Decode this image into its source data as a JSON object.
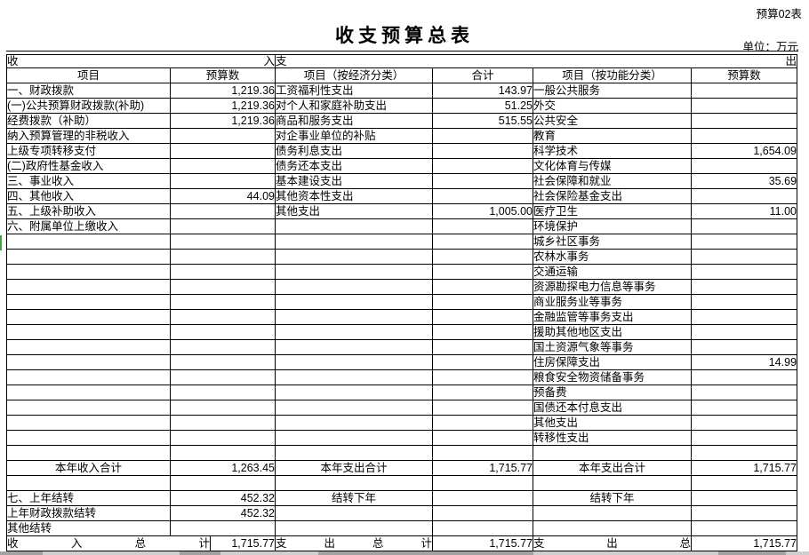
{
  "page": {
    "corner_label": "预算02表",
    "title": "收支预算总表",
    "unit_label": "单位：万元"
  },
  "colors": {
    "selection_green": "#3aa83a",
    "window_strip_gray": "#a2a2a2"
  },
  "table": {
    "header": {
      "income_group": "收入",
      "expense_group": "支出",
      "col_item_income": "项目",
      "col_budget_income": "预算数",
      "col_item_econ": "项目（按经济分类）",
      "col_total_econ": "合计",
      "col_item_func": "项目（按功能分类）",
      "col_budget_func": "预算数"
    },
    "body_rows": [
      {
        "income": {
          "label": "一、财政拨款",
          "indent": 0,
          "value": "1,219.36"
        },
        "economic": {
          "label": "工资福利性支出",
          "value": "143.97"
        },
        "functional": {
          "label": "一般公共服务",
          "value": ""
        }
      },
      {
        "income": {
          "label": "(一)公共预算财政拨款(补助)",
          "indent": 1,
          "value": "1,219.36"
        },
        "economic": {
          "label": "对个人和家庭补助支出",
          "value": "51.25"
        },
        "functional": {
          "label": "外交",
          "value": ""
        }
      },
      {
        "income": {
          "label": "经费拨款（补助）",
          "indent": 2,
          "value": "1,219.36"
        },
        "economic": {
          "label": "商品和服务支出",
          "value": "515.55"
        },
        "functional": {
          "label": "公共安全",
          "value": ""
        }
      },
      {
        "income": {
          "label": "纳入预算管理的非税收入",
          "indent": 2,
          "value": ""
        },
        "economic": {
          "label": "对企事业单位的补贴",
          "value": ""
        },
        "functional": {
          "label": "教育",
          "value": ""
        }
      },
      {
        "income": {
          "label": "上级专项转移支付",
          "indent": 2,
          "value": ""
        },
        "economic": {
          "label": "债务利息支出",
          "value": ""
        },
        "functional": {
          "label": "科学技术",
          "value": "1,654.09"
        }
      },
      {
        "income": {
          "label": "(二)政府性基金收入",
          "indent": 1,
          "value": ""
        },
        "economic": {
          "label": "债务还本支出",
          "value": ""
        },
        "functional": {
          "label": "文化体育与传媒",
          "value": ""
        }
      },
      {
        "income": {
          "label": "三、事业收入",
          "indent": 0,
          "value": ""
        },
        "economic": {
          "label": "基本建设支出",
          "value": ""
        },
        "functional": {
          "label": "社会保障和就业",
          "value": "35.69"
        }
      },
      {
        "income": {
          "label": "四、其他收入",
          "indent": 0,
          "value": "44.09"
        },
        "economic": {
          "label": "其他资本性支出",
          "value": ""
        },
        "functional": {
          "label": "社会保险基金支出",
          "value": ""
        }
      },
      {
        "income": {
          "label": "五、上级补助收入",
          "indent": 0,
          "value": ""
        },
        "economic": {
          "label": "其他支出",
          "value": "1,005.00"
        },
        "functional": {
          "label": "医疗卫生",
          "value": "11.00"
        }
      },
      {
        "income": {
          "label": "六、附属单位上缴收入",
          "indent": 0,
          "value": ""
        },
        "economic": {
          "label": "",
          "value": ""
        },
        "functional": {
          "label": "环境保护",
          "value": ""
        }
      },
      {
        "income": {
          "label": "",
          "indent": 0,
          "value": ""
        },
        "economic": {
          "label": "",
          "value": ""
        },
        "functional": {
          "label": "城乡社区事务",
          "value": ""
        }
      },
      {
        "income": {
          "label": "",
          "indent": 0,
          "value": ""
        },
        "economic": {
          "label": "",
          "value": ""
        },
        "functional": {
          "label": "农林水事务",
          "value": ""
        }
      },
      {
        "income": {
          "label": "",
          "indent": 0,
          "value": ""
        },
        "economic": {
          "label": "",
          "value": ""
        },
        "functional": {
          "label": "交通运输",
          "value": ""
        }
      },
      {
        "income": {
          "label": "",
          "indent": 0,
          "value": ""
        },
        "economic": {
          "label": "",
          "value": ""
        },
        "functional": {
          "label": "资源勘探电力信息等事务",
          "value": ""
        }
      },
      {
        "income": {
          "label": "",
          "indent": 0,
          "value": ""
        },
        "economic": {
          "label": "",
          "value": ""
        },
        "functional": {
          "label": "商业服务业等事务",
          "value": ""
        }
      },
      {
        "income": {
          "label": "",
          "indent": 0,
          "value": ""
        },
        "economic": {
          "label": "",
          "value": ""
        },
        "functional": {
          "label": "金融监管等事务支出",
          "value": ""
        }
      },
      {
        "income": {
          "label": "",
          "indent": 0,
          "value": ""
        },
        "economic": {
          "label": "",
          "value": ""
        },
        "functional": {
          "label": "援助其他地区支出",
          "value": ""
        }
      },
      {
        "income": {
          "label": "",
          "indent": 0,
          "value": ""
        },
        "economic": {
          "label": "",
          "value": ""
        },
        "functional": {
          "label": "国土资源气象等事务",
          "value": ""
        }
      },
      {
        "income": {
          "label": "",
          "indent": 0,
          "value": ""
        },
        "economic": {
          "label": "",
          "value": ""
        },
        "functional": {
          "label": "住房保障支出",
          "value": "14.99"
        }
      },
      {
        "income": {
          "label": "",
          "indent": 0,
          "value": ""
        },
        "economic": {
          "label": "",
          "value": ""
        },
        "functional": {
          "label": "粮食安全物资储备事务",
          "value": ""
        }
      },
      {
        "income": {
          "label": "",
          "indent": 0,
          "value": ""
        },
        "economic": {
          "label": "",
          "value": ""
        },
        "functional": {
          "label": "预备费",
          "value": ""
        }
      },
      {
        "income": {
          "label": "",
          "indent": 0,
          "value": ""
        },
        "economic": {
          "label": "",
          "value": ""
        },
        "functional": {
          "label": "国债还本付息支出",
          "value": ""
        }
      },
      {
        "income": {
          "label": "",
          "indent": 0,
          "value": ""
        },
        "economic": {
          "label": "",
          "value": ""
        },
        "functional": {
          "label": "其他支出",
          "value": ""
        }
      },
      {
        "income": {
          "label": "",
          "indent": 0,
          "value": ""
        },
        "economic": {
          "label": "",
          "value": ""
        },
        "functional": {
          "label": "转移性支出",
          "value": ""
        }
      }
    ],
    "summary_rows": [
      {
        "income_label": "",
        "income_style": "left0",
        "income_value": "",
        "econ_label": "",
        "econ_style": "left0",
        "econ_value": "",
        "func_label": "",
        "func_style": "left0",
        "func_value": ""
      },
      {
        "income_label": "本年收入合计",
        "income_style": "center",
        "income_value": "1,263.45",
        "econ_label": "本年支出合计",
        "econ_style": "center",
        "econ_value": "1,715.77",
        "func_label": "本年支出合计",
        "func_style": "center",
        "func_value": "1,715.77"
      },
      {
        "income_label": "",
        "income_style": "left0",
        "income_value": "",
        "econ_label": "",
        "econ_style": "left0",
        "econ_value": "",
        "func_label": "",
        "func_style": "left0",
        "func_value": ""
      },
      {
        "income_label": "七、上年结转",
        "income_style": "left0",
        "income_value": "452.32",
        "econ_label": "结转下年",
        "econ_style": "center",
        "econ_value": "",
        "func_label": "结转下年",
        "func_style": "center",
        "func_value": ""
      },
      {
        "income_label": "上年财政拨款结转",
        "income_style": "left2",
        "income_value": "452.32",
        "econ_label": "",
        "econ_style": "left0",
        "econ_value": "",
        "func_label": "",
        "func_style": "left0",
        "func_value": ""
      },
      {
        "income_label": "其他结转",
        "income_style": "left2",
        "income_value": "",
        "econ_label": "",
        "econ_style": "left0",
        "econ_value": "",
        "func_label": "",
        "func_style": "left0",
        "func_value": ""
      },
      {
        "is_total": true,
        "income_label": "收入总计",
        "income_value": "1,715.77",
        "econ_label": "支出总计",
        "econ_value": "1,715.77",
        "func_label": "支出总",
        "func_value": "1,715.77"
      }
    ]
  }
}
